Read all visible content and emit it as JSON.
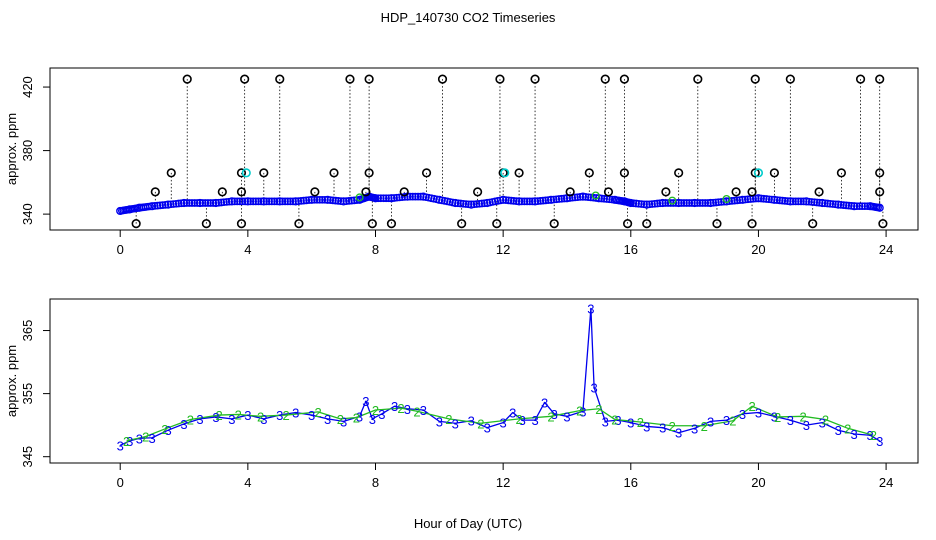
{
  "title": "HDP_140730  CO2 Timeseries",
  "xlabel": "Hour of Day (UTC)",
  "chart_data": [
    {
      "type": "scatter",
      "title": "",
      "xlabel": "",
      "ylabel": "approx. ppm",
      "xlim": [
        -2.2,
        25
      ],
      "ylim": [
        330,
        432
      ],
      "xticks": [
        0,
        4,
        8,
        12,
        16,
        20,
        24
      ],
      "xtick_labels": [
        "0",
        "4",
        "8",
        "12",
        "16",
        "20",
        "24"
      ],
      "yticks": [
        340,
        380,
        420
      ],
      "ytick_labels": [
        "340",
        "380",
        "420"
      ],
      "colors": {
        "baseline": "#0000ee",
        "flagged": "#000000",
        "cyan": "#00cccc",
        "green": "#22bb22"
      },
      "baseline": {
        "x": [
          0.0,
          0.3,
          0.6,
          1.0,
          1.5,
          2.0,
          2.5,
          3.0,
          3.5,
          4.0,
          4.5,
          5.0,
          5.5,
          6.0,
          6.5,
          7.0,
          7.5,
          7.8,
          8.0,
          8.5,
          9.0,
          9.5,
          10.0,
          10.5,
          11.0,
          11.5,
          12.0,
          12.5,
          13.0,
          13.5,
          14.0,
          14.5,
          15.0,
          15.5,
          15.8,
          16.0,
          16.5,
          17.0,
          17.5,
          18.0,
          18.5,
          19.0,
          19.5,
          20.0,
          20.5,
          21.0,
          21.5,
          22.0,
          22.5,
          23.0,
          23.5,
          23.8
        ],
        "y": [
          342,
          343,
          344,
          345,
          346,
          347,
          347,
          347,
          348,
          348,
          348,
          348,
          348,
          349,
          349,
          348,
          349,
          351,
          350,
          350,
          351,
          351,
          349,
          347,
          346,
          347,
          349,
          348,
          348,
          349,
          350,
          351,
          350,
          349,
          348,
          347,
          346,
          347,
          347,
          347,
          347,
          348,
          349,
          350,
          349,
          348,
          348,
          347,
          346,
          345,
          345,
          344
        ]
      },
      "flagged_top": {
        "x": [
          2.1,
          3.9,
          5.0,
          7.2,
          7.8,
          10.1,
          11.9,
          13.0,
          15.2,
          15.8,
          18.1,
          19.9,
          21.0,
          23.2,
          23.8
        ],
        "y": [
          425,
          425,
          425,
          425,
          425,
          425,
          425,
          425,
          425,
          425,
          425,
          425,
          425,
          425,
          425
        ]
      },
      "flagged_mid": {
        "x": [
          1.6,
          3.8,
          4.5,
          6.7,
          7.8,
          9.6,
          12.0,
          12.5,
          14.7,
          15.8,
          17.5,
          19.9,
          20.5,
          22.6,
          23.8
        ],
        "y": [
          366,
          366,
          366,
          366,
          366,
          366,
          366,
          366,
          366,
          366,
          366,
          366,
          366,
          366,
          366
        ]
      },
      "flagged_low": {
        "x": [
          1.1,
          3.2,
          3.8,
          6.1,
          7.7,
          8.9,
          11.2,
          14.1,
          15.3,
          17.1,
          19.3,
          19.8,
          21.9,
          23.8
        ],
        "y": [
          354,
          354,
          354,
          354,
          354,
          354,
          354,
          354,
          354,
          354,
          354,
          354,
          354,
          354
        ]
      },
      "flagged_bottom": {
        "x": [
          0.5,
          2.7,
          3.8,
          5.6,
          7.9,
          8.5,
          10.7,
          11.8,
          13.6,
          15.9,
          16.5,
          18.7,
          19.8,
          21.7,
          23.9
        ],
        "y": [
          334,
          334,
          334,
          334,
          334,
          334,
          334,
          334,
          334,
          334,
          334,
          334,
          334,
          334,
          334
        ]
      }
    },
    {
      "type": "scatter",
      "title": "",
      "xlabel": "",
      "ylabel": "approx. ppm",
      "xlim": [
        -2.2,
        25
      ],
      "ylim": [
        344,
        370
      ],
      "xticks": [
        0,
        4,
        8,
        12,
        16,
        20,
        24
      ],
      "xtick_labels": [
        "0",
        "4",
        "8",
        "12",
        "16",
        "20",
        "24"
      ],
      "yticks": [
        345,
        355,
        365
      ],
      "ytick_labels": [
        "345",
        "355",
        "365"
      ],
      "marker_labels": [
        "2",
        "3"
      ],
      "colors": {
        "blue": "#0000ee",
        "green": "#22bb22"
      },
      "series": [
        {
          "label": "3",
          "x": [
            0.0,
            0.3,
            0.6,
            1.0,
            1.5,
            2.0,
            2.5,
            3.0,
            3.5,
            4.0,
            4.5,
            5.0,
            5.5,
            6.0,
            6.5,
            7.0,
            7.5,
            7.7,
            7.9,
            8.2,
            8.6,
            9.0,
            9.5,
            10.0,
            10.5,
            11.0,
            11.5,
            12.0,
            12.3,
            12.6,
            13.0,
            13.3,
            13.6,
            14.0,
            14.5,
            14.75,
            14.85,
            15.2,
            15.6,
            16.0,
            16.5,
            17.0,
            17.5,
            18.0,
            18.5,
            19.0,
            19.5,
            20.0,
            20.5,
            21.0,
            21.5,
            22.0,
            22.5,
            23.0,
            23.5,
            23.8
          ],
          "y": [
            346.8,
            347.5,
            347.9,
            348.0,
            349.2,
            350.2,
            351.0,
            351.3,
            351.0,
            351.6,
            351.0,
            351.6,
            352.0,
            351.6,
            351.0,
            350.6,
            351.4,
            353.8,
            351.0,
            351.8,
            353.0,
            352.6,
            352.4,
            350.6,
            350.3,
            350.7,
            349.6,
            350.4,
            352.0,
            350.8,
            350.8,
            353.6,
            351.8,
            351.4,
            352.2,
            368.5,
            356.0,
            350.6,
            350.8,
            350.4,
            349.8,
            349.6,
            348.8,
            349.5,
            350.6,
            350.8,
            351.8,
            352.0,
            351.4,
            350.8,
            350.0,
            350.4,
            349.2,
            348.6,
            348.4,
            347.5
          ]
        },
        {
          "label": "2",
          "x": [
            0.2,
            0.8,
            1.4,
            2.2,
            3.1,
            3.7,
            4.4,
            5.2,
            6.2,
            6.9,
            7.4,
            8.0,
            8.8,
            9.3,
            10.3,
            11.3,
            12.5,
            13.5,
            14.4,
            15.0,
            15.5,
            16.3,
            17.3,
            18.3,
            19.2,
            19.8,
            20.6,
            21.4,
            22.1,
            22.8,
            23.6
          ],
          "y": [
            347.5,
            348.2,
            349.4,
            350.9,
            351.6,
            351.7,
            351.4,
            351.6,
            352.1,
            351.0,
            351.2,
            352.4,
            352.7,
            352.2,
            351.0,
            350.3,
            351.0,
            351.4,
            352.3,
            352.6,
            350.9,
            350.5,
            349.9,
            349.9,
            350.7,
            353.0,
            351.3,
            351.4,
            350.9,
            349.5,
            348.4
          ]
        }
      ]
    }
  ]
}
